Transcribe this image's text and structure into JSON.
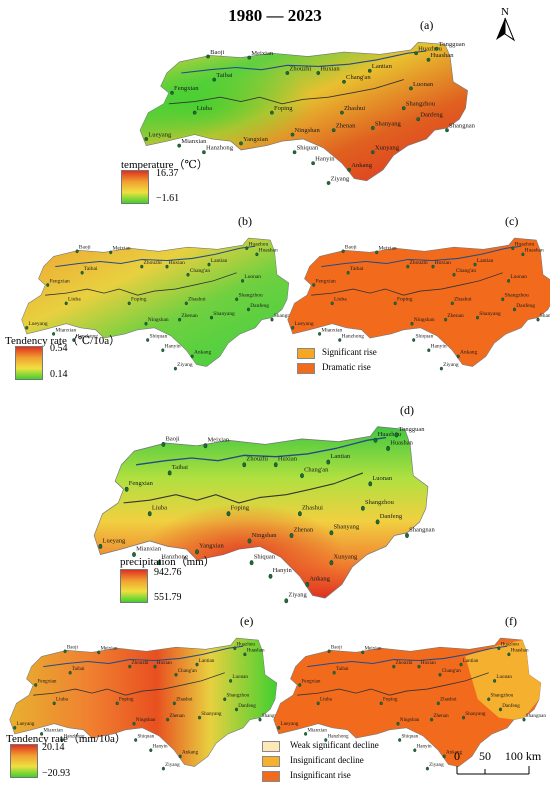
{
  "title": "1980 — 2023",
  "north": "N",
  "panels": {
    "a": {
      "label": "(a)",
      "legend_title": "temperature（℃）",
      "max": "16.37",
      "min": "−1.61"
    },
    "b": {
      "label": "(b)",
      "legend_title": "Tendency rate（℃/10a）",
      "max": "0.54",
      "min": "0.14"
    },
    "c": {
      "label": "(c)",
      "legend": [
        "Significant rise",
        "Dramatic rise"
      ]
    },
    "d": {
      "label": "(d)",
      "legend_title": "precipitation（mm）",
      "max": "942.76",
      "min": "551.79"
    },
    "e": {
      "label": "(e)",
      "legend_title": "Tendency rate（mm/10a）",
      "max": "20.14",
      "min": "−20.93"
    },
    "f": {
      "label": "(f)",
      "legend": [
        "Weak significant decline",
        "Insignificant decline",
        "Insignificant rise"
      ]
    }
  },
  "scale": {
    "ticks": [
      "0",
      "50",
      "100 km"
    ]
  },
  "colors": {
    "high": "#e03020",
    "mid": "#f0e040",
    "low": "#40d030",
    "orange": "#f07010",
    "amber": "#f6b030",
    "pale": "#fde8b8",
    "sig_rise": "#f5a623",
    "dramatic": "#f26b1d"
  },
  "sites_full": [
    "Huazhou",
    "Tongguan",
    "Huashan",
    "Baoji",
    "Meixian",
    "Zhouzhi",
    "Huxian",
    "Taibai",
    "Chang'an",
    "Lantian",
    "Luonan",
    "Fengxian",
    "Shangzhou",
    "Danfeng",
    "Liuba",
    "Foping",
    "Zhashui",
    "Shanyang",
    "Shangnan",
    "Lueyang",
    "Ningshan",
    "Zhenan",
    "Mianxian",
    "Yangxian",
    "Hanzhong",
    "Shiquan",
    "Hanyin",
    "Xunyang",
    "Ankang",
    "Ziyang"
  ],
  "sites_small": [
    "Huazhou",
    "Huashan",
    "Baoji",
    "Meixian",
    "Zhouzhi",
    "Huxian",
    "Taibai",
    "Chang'an",
    "Lantian",
    "Luonan",
    "Fengxian",
    "Shangzhou",
    "Danfeng",
    "Liuba",
    "Foping",
    "Zhashui",
    "Shanyang",
    "Shangnan",
    "Lueyang",
    "Ningshan",
    "Zhenan",
    "Mianxian",
    "Hanzhong",
    "Shiquan",
    "Hanyin",
    "Ankang",
    "Ziyang"
  ]
}
